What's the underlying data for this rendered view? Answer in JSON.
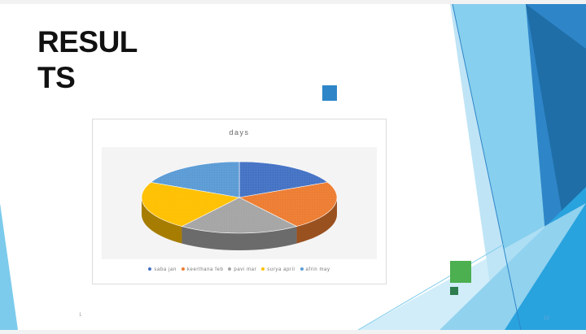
{
  "slide": {
    "title": "RESULTS",
    "page_number": "13",
    "footer_mark": "1",
    "accent_colors": {
      "dark_blue": "#1f6ea8",
      "blue": "#2e86c8",
      "light_blue": "#7ccbec",
      "green": "#4caf50",
      "dark_green": "#2e7d4f"
    }
  },
  "chart_data": {
    "type": "pie",
    "title": "days",
    "categories": [
      "saba jan",
      "keerthana feb",
      "pavi mar",
      "surya april",
      "afrin may"
    ],
    "values": [
      18,
      22,
      20,
      22,
      18
    ],
    "colors": [
      "#4472c4",
      "#ed7d31",
      "#a5a5a5",
      "#ffc000",
      "#5b9bd5"
    ],
    "style": "3d-textured",
    "legend": "bottom"
  }
}
